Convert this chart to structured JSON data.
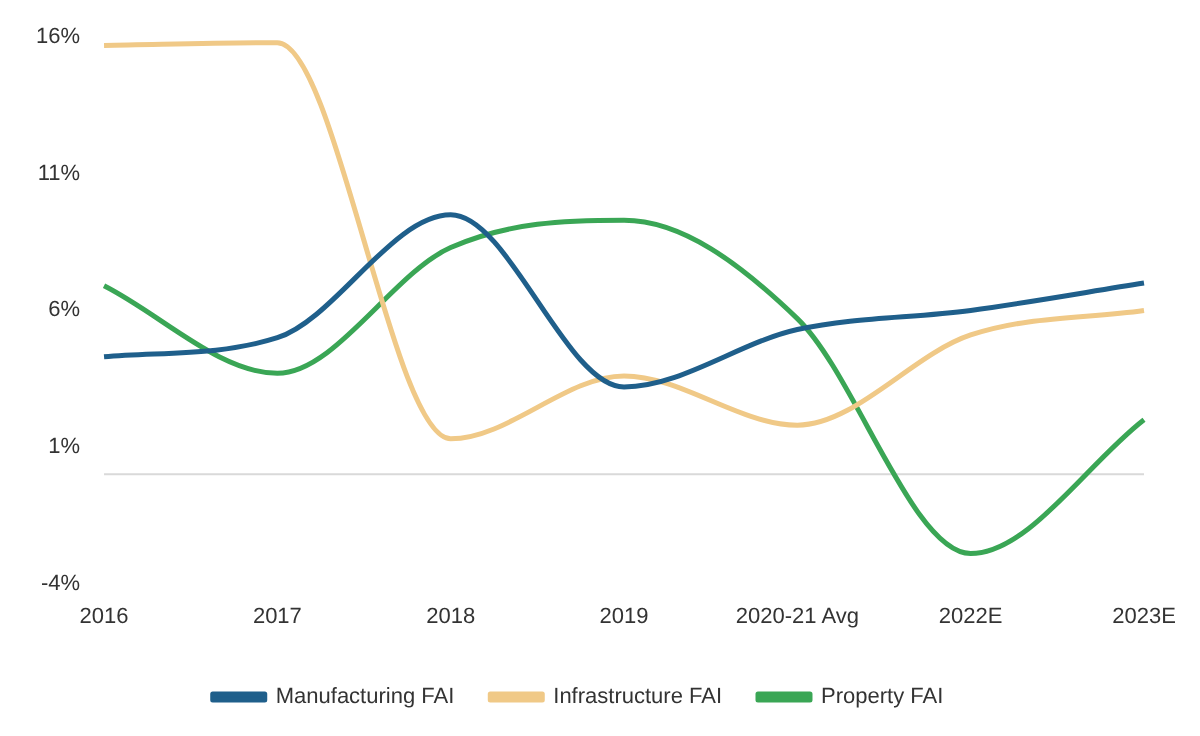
{
  "chart_data": {
    "type": "line",
    "categories": [
      "2016",
      "2017",
      "2018",
      "2019",
      "2020-21 Avg",
      "2022E",
      "2023E"
    ],
    "series": [
      {
        "name": "Manufacturing FAI",
        "color": "#1f5f8b",
        "values": [
          4.3,
          5.0,
          9.5,
          3.2,
          5.3,
          6.0,
          7.0
        ]
      },
      {
        "name": "Infrastructure FAI",
        "color": "#f0c987",
        "values": [
          15.7,
          15.8,
          1.3,
          3.6,
          1.8,
          5.1,
          6.0
        ]
      },
      {
        "name": "Property FAI",
        "color": "#3aa655",
        "values": [
          6.9,
          3.7,
          8.3,
          9.3,
          5.7,
          -2.9,
          2.0
        ]
      }
    ],
    "ylim": [
      -4,
      16
    ],
    "yticks": [
      {
        "value": -4,
        "label": "-4%"
      },
      {
        "value": 1,
        "label": "1%"
      },
      {
        "value": 6,
        "label": "6%"
      },
      {
        "value": 11,
        "label": "11%"
      },
      {
        "value": 16,
        "label": "16%"
      }
    ],
    "ref_lines": [
      {
        "axis": "y",
        "value": 0,
        "color": "#d9d9d9"
      }
    ],
    "grid": false,
    "legend": "bottom",
    "marker": "none",
    "line_style": "solid"
  }
}
